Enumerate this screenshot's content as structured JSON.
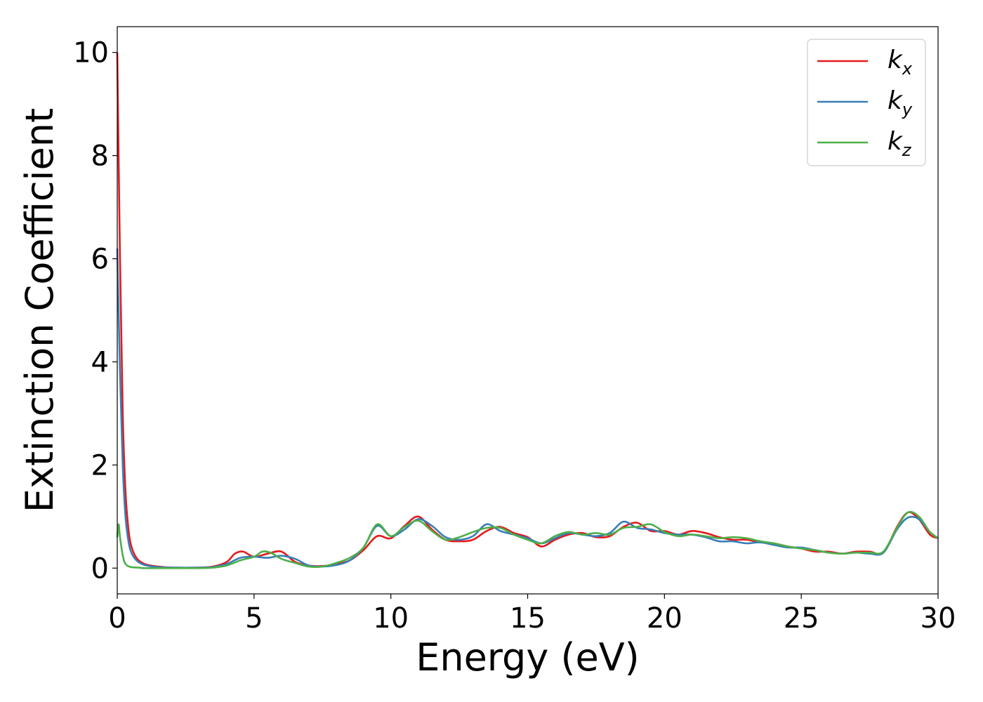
{
  "chart_data": {
    "type": "line",
    "title": "",
    "xlabel": "Energy (eV)",
    "ylabel": "Extinction Coefficient",
    "xlim": [
      0,
      30
    ],
    "ylim": [
      -0.5,
      10.5
    ],
    "xticks": [
      0,
      5,
      10,
      15,
      20,
      25,
      30
    ],
    "yticks": [
      0,
      2,
      4,
      6,
      8,
      10
    ],
    "grid": false,
    "legend_position": "top-right",
    "series": [
      {
        "name": "k",
        "subscript": "x",
        "color": "#e41a1c",
        "x": [
          0,
          0.1,
          0.2,
          0.3,
          0.4,
          0.5,
          0.7,
          1.0,
          1.5,
          2.0,
          3.0,
          3.5,
          4.0,
          4.3,
          4.6,
          5.0,
          5.5,
          6.0,
          6.5,
          7.0,
          7.5,
          8.0,
          8.5,
          9.0,
          9.5,
          10.0,
          10.5,
          11.0,
          11.5,
          12.0,
          12.5,
          13.0,
          13.5,
          14.0,
          14.5,
          15.0,
          15.5,
          16.0,
          16.5,
          17.0,
          17.5,
          18.0,
          18.5,
          19.0,
          19.5,
          20.0,
          20.5,
          21.0,
          21.5,
          22.0,
          22.5,
          23.0,
          23.5,
          24.0,
          24.5,
          25.0,
          25.5,
          26.0,
          26.5,
          27.0,
          27.5,
          28.0,
          28.5,
          28.9,
          29.3,
          29.7,
          30.0
        ],
        "y": [
          10.0,
          6.0,
          3.0,
          1.5,
          0.8,
          0.45,
          0.2,
          0.08,
          0.03,
          0.01,
          0.01,
          0.03,
          0.12,
          0.28,
          0.32,
          0.22,
          0.28,
          0.32,
          0.12,
          0.05,
          0.04,
          0.08,
          0.15,
          0.35,
          0.62,
          0.58,
          0.82,
          1.0,
          0.75,
          0.55,
          0.52,
          0.55,
          0.72,
          0.8,
          0.68,
          0.6,
          0.42,
          0.55,
          0.65,
          0.68,
          0.6,
          0.62,
          0.8,
          0.88,
          0.72,
          0.72,
          0.65,
          0.72,
          0.68,
          0.6,
          0.55,
          0.55,
          0.5,
          0.48,
          0.42,
          0.38,
          0.32,
          0.32,
          0.28,
          0.32,
          0.32,
          0.3,
          0.8,
          1.08,
          0.95,
          0.65,
          0.58
        ]
      },
      {
        "name": "k",
        "subscript": "y",
        "color": "#377eb8",
        "x": [
          0,
          0.1,
          0.2,
          0.3,
          0.4,
          0.5,
          0.7,
          1.0,
          1.5,
          2.0,
          3.0,
          3.5,
          4.0,
          4.5,
          5.0,
          5.5,
          6.0,
          6.5,
          7.0,
          7.5,
          8.0,
          8.5,
          9.0,
          9.5,
          10.0,
          10.5,
          11.0,
          11.5,
          12.0,
          12.5,
          13.0,
          13.5,
          14.0,
          14.5,
          15.0,
          15.5,
          16.0,
          16.5,
          17.0,
          17.5,
          18.0,
          18.5,
          19.0,
          19.5,
          20.0,
          20.5,
          21.0,
          21.5,
          22.0,
          22.5,
          23.0,
          23.5,
          24.0,
          24.5,
          25.0,
          25.5,
          26.0,
          26.5,
          27.0,
          27.5,
          28.0,
          28.5,
          28.9,
          29.3,
          29.7,
          30.0
        ],
        "y": [
          6.2,
          3.8,
          2.0,
          1.0,
          0.55,
          0.32,
          0.15,
          0.06,
          0.02,
          0.01,
          0.01,
          0.02,
          0.08,
          0.2,
          0.22,
          0.2,
          0.24,
          0.18,
          0.05,
          0.03,
          0.06,
          0.15,
          0.4,
          0.82,
          0.62,
          0.75,
          0.95,
          0.82,
          0.6,
          0.55,
          0.62,
          0.85,
          0.72,
          0.65,
          0.58,
          0.48,
          0.58,
          0.68,
          0.65,
          0.62,
          0.68,
          0.9,
          0.78,
          0.75,
          0.68,
          0.65,
          0.65,
          0.6,
          0.52,
          0.52,
          0.48,
          0.5,
          0.45,
          0.4,
          0.4,
          0.35,
          0.3,
          0.28,
          0.3,
          0.28,
          0.3,
          0.75,
          0.98,
          0.95,
          0.7,
          0.58
        ]
      },
      {
        "name": "k",
        "subscript": "z",
        "color": "#4daf4a",
        "x": [
          0,
          0.05,
          0.1,
          0.2,
          0.3,
          0.5,
          0.8,
          1.0,
          2.0,
          3.0,
          3.5,
          4.0,
          4.5,
          5.0,
          5.3,
          5.6,
          6.0,
          6.5,
          7.0,
          7.5,
          8.0,
          8.5,
          9.0,
          9.5,
          10.0,
          10.5,
          11.0,
          11.5,
          12.0,
          12.5,
          13.0,
          13.5,
          14.0,
          14.5,
          15.0,
          15.5,
          16.0,
          16.5,
          17.0,
          17.5,
          18.0,
          18.5,
          19.0,
          19.5,
          20.0,
          20.5,
          21.0,
          21.5,
          22.0,
          22.5,
          23.0,
          23.5,
          24.0,
          24.5,
          25.0,
          25.5,
          26.0,
          26.5,
          27.0,
          27.5,
          28.0,
          28.5,
          28.9,
          29.3,
          29.7,
          30.0
        ],
        "y": [
          0.6,
          0.85,
          0.6,
          0.25,
          0.08,
          0.02,
          0.01,
          0.0,
          0.0,
          0.0,
          0.01,
          0.05,
          0.15,
          0.22,
          0.32,
          0.3,
          0.18,
          0.1,
          0.03,
          0.03,
          0.1,
          0.2,
          0.4,
          0.85,
          0.62,
          0.8,
          0.92,
          0.72,
          0.55,
          0.6,
          0.7,
          0.78,
          0.78,
          0.65,
          0.55,
          0.48,
          0.62,
          0.7,
          0.65,
          0.68,
          0.65,
          0.78,
          0.8,
          0.85,
          0.7,
          0.62,
          0.65,
          0.62,
          0.58,
          0.6,
          0.58,
          0.52,
          0.48,
          0.42,
          0.38,
          0.35,
          0.3,
          0.28,
          0.3,
          0.3,
          0.32,
          0.78,
          1.08,
          1.0,
          0.7,
          0.58
        ]
      }
    ]
  }
}
